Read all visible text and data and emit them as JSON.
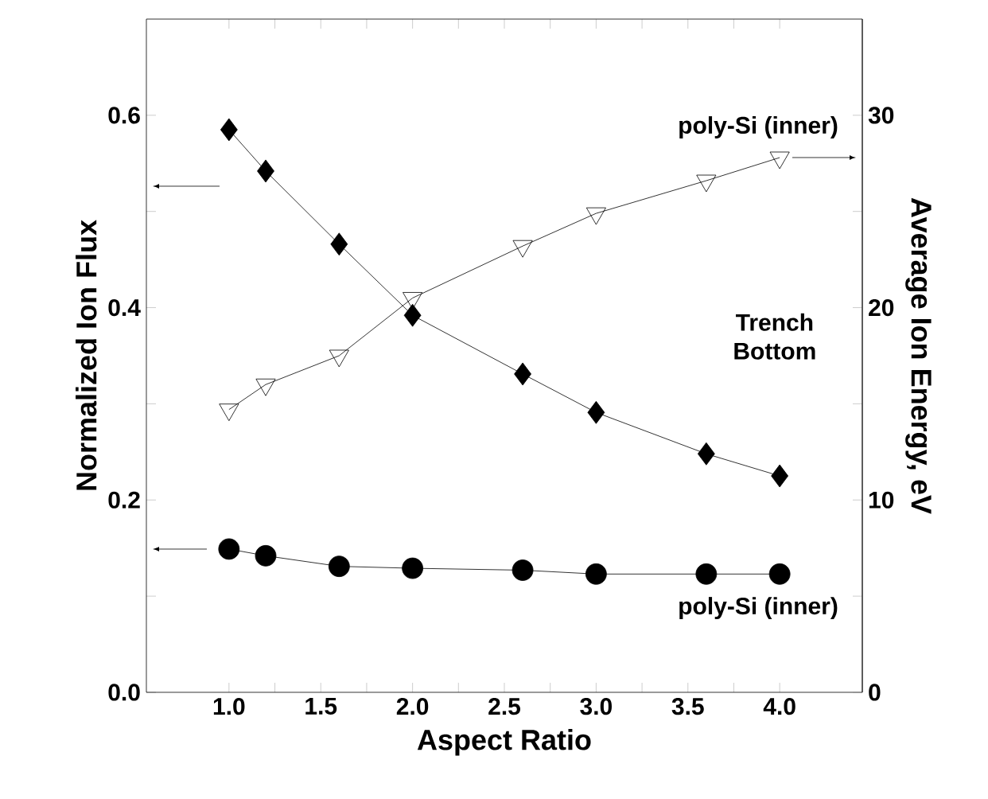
{
  "chart_data": {
    "type": "line",
    "xlabel": "Aspect Ratio",
    "ylabel": "Normalized Ion Flux",
    "y2label": "Average Ion Energy, eV",
    "x": [
      1.0,
      1.2,
      1.6,
      2.0,
      2.6,
      3.0,
      3.6,
      4.0
    ],
    "series": [
      {
        "color": "#000000",
        "marker": "diamond",
        "values": [
          0.585,
          0.542,
          0.466,
          0.392,
          0.331,
          0.291,
          0.248,
          0.225
        ]
      },
      {
        "color": "#000000",
        "marker": "circle",
        "values": [
          0.149,
          0.142,
          0.131,
          0.129,
          0.127,
          0.123,
          0.123,
          0.123
        ]
      },
      {
        "color": "#000000",
        "marker": "triangle",
        "axis": "y2",
        "values": [
          14.7,
          16.0,
          17.5,
          20.5,
          23.2,
          24.9,
          26.6,
          27.8
        ]
      }
    ],
    "xlim": [
      0.55,
      4.45
    ],
    "ylim": [
      0,
      0.7
    ],
    "y2lim": [
      0,
      35
    ],
    "xticks": [
      {
        "value": 1,
        "label": "1.0"
      },
      1.5,
      {
        "value": 2,
        "label": "2.0"
      },
      2.5,
      {
        "value": 3,
        "label": "3.0"
      },
      3.5,
      {
        "value": 4,
        "label": "4.0"
      }
    ],
    "yticks": [
      {
        "value": 0,
        "label": "0.0"
      },
      0.2,
      0.4,
      0.6
    ],
    "y2ticks": [
      0,
      10,
      20,
      30
    ],
    "annotations": [
      "poly-Si (inner)",
      "Trench Bottom",
      "poly-Si (inner)"
    ],
    "grid": false,
    "line_style": "solid"
  }
}
